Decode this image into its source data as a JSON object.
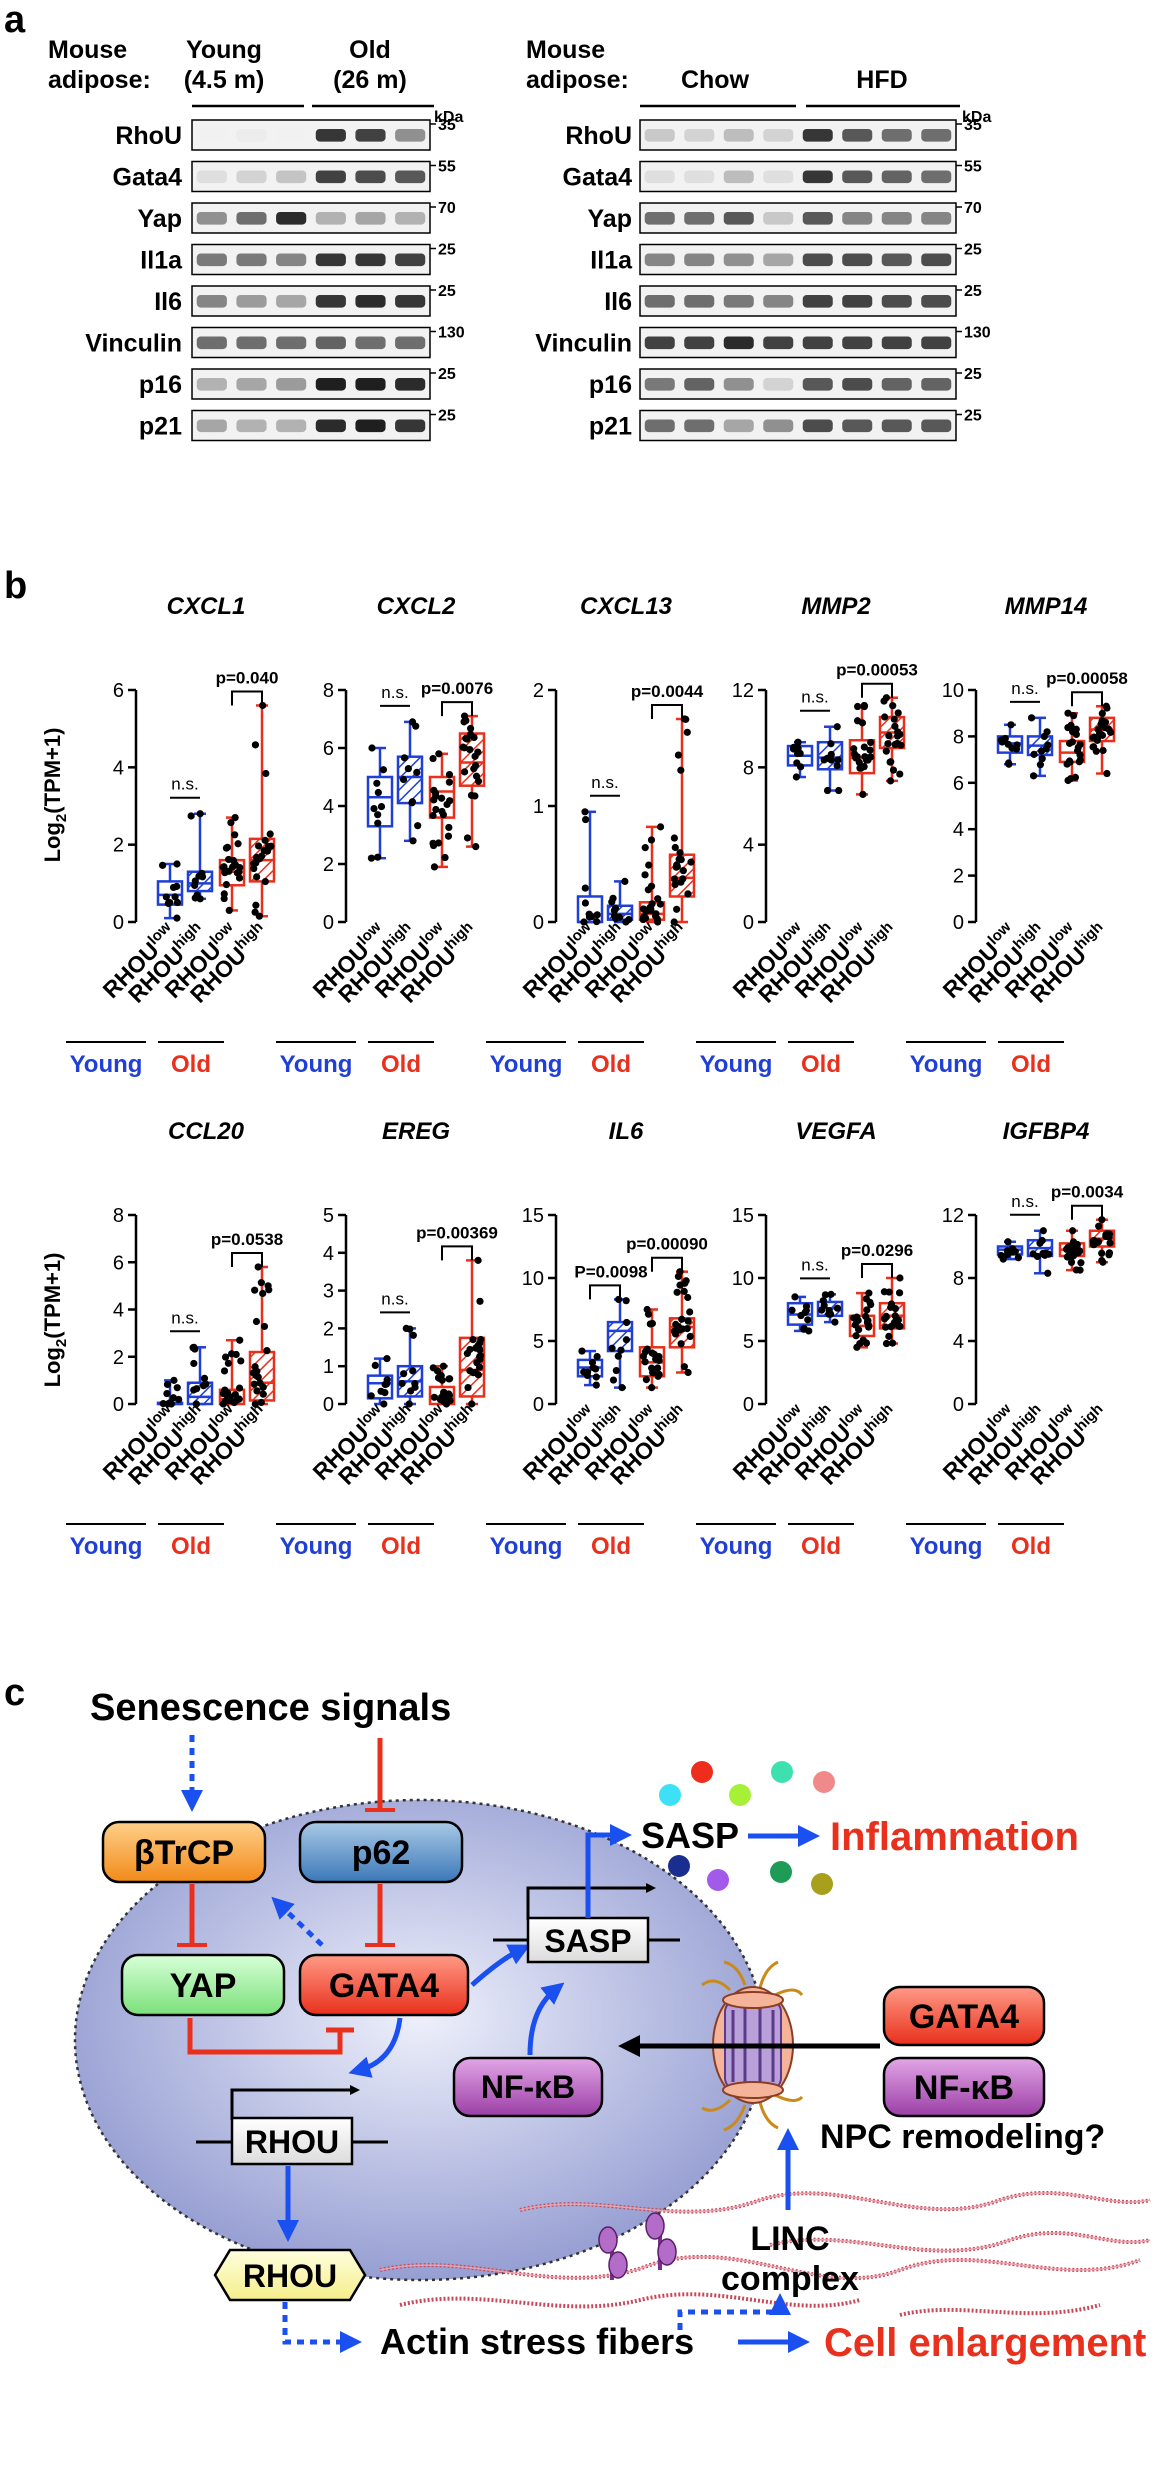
{
  "panel_a": {
    "letter": "a",
    "left": {
      "title1": "Mouse",
      "title2": "adipose:",
      "groups": [
        {
          "name": "Young",
          "sub": "(4.5 m)"
        },
        {
          "name": "Old",
          "sub": "(26 m)"
        }
      ],
      "kda": "kDa",
      "lanes_per_group": 3,
      "rows": [
        {
          "protein": "RhoU",
          "kda": "35",
          "intensity": [
            0.02,
            0.04,
            0.02,
            0.85,
            0.8,
            0.45
          ]
        },
        {
          "protein": "Gata4",
          "kda": "55",
          "intensity": [
            0.1,
            0.15,
            0.22,
            0.8,
            0.75,
            0.7
          ]
        },
        {
          "protein": "Yap",
          "kda": "70",
          "intensity": [
            0.45,
            0.6,
            0.9,
            0.3,
            0.35,
            0.3
          ]
        },
        {
          "protein": "Il1a",
          "kda": "25",
          "intensity": [
            0.55,
            0.55,
            0.5,
            0.85,
            0.85,
            0.8
          ]
        },
        {
          "protein": "Il6",
          "kda": "25",
          "intensity": [
            0.5,
            0.4,
            0.35,
            0.85,
            0.9,
            0.85
          ]
        },
        {
          "protein": "Vinculin",
          "kda": "130",
          "intensity": [
            0.6,
            0.6,
            0.6,
            0.65,
            0.6,
            0.6
          ]
        },
        {
          "protein": "p16",
          "kda": "25",
          "intensity": [
            0.3,
            0.35,
            0.4,
            0.95,
            0.95,
            0.9
          ]
        },
        {
          "protein": "p21",
          "kda": "25",
          "intensity": [
            0.35,
            0.3,
            0.3,
            0.9,
            0.95,
            0.85
          ]
        }
      ]
    },
    "right": {
      "title1": "Mouse",
      "title2": "adipose:",
      "groups": [
        {
          "name": "Chow",
          "sub": ""
        },
        {
          "name": "HFD",
          "sub": ""
        }
      ],
      "kda": "kDa",
      "lanes_per_group": 4,
      "rows": [
        {
          "protein": "RhoU",
          "kda": "35",
          "intensity": [
            0.2,
            0.15,
            0.25,
            0.15,
            0.85,
            0.7,
            0.6,
            0.6
          ]
        },
        {
          "protein": "Gata4",
          "kda": "55",
          "intensity": [
            0.1,
            0.1,
            0.25,
            0.1,
            0.85,
            0.7,
            0.65,
            0.6
          ]
        },
        {
          "protein": "Yap",
          "kda": "70",
          "intensity": [
            0.6,
            0.6,
            0.7,
            0.2,
            0.7,
            0.5,
            0.5,
            0.5
          ]
        },
        {
          "protein": "Il1a",
          "kda": "25",
          "intensity": [
            0.5,
            0.5,
            0.45,
            0.35,
            0.75,
            0.75,
            0.7,
            0.75
          ]
        },
        {
          "protein": "Il6",
          "kda": "25",
          "intensity": [
            0.6,
            0.6,
            0.55,
            0.5,
            0.8,
            0.8,
            0.75,
            0.75
          ]
        },
        {
          "protein": "Vinculin",
          "kda": "130",
          "intensity": [
            0.8,
            0.8,
            0.9,
            0.8,
            0.8,
            0.8,
            0.8,
            0.8
          ]
        },
        {
          "protein": "p16",
          "kda": "25",
          "intensity": [
            0.55,
            0.65,
            0.45,
            0.15,
            0.7,
            0.75,
            0.65,
            0.65
          ]
        },
        {
          "protein": "p21",
          "kda": "25",
          "intensity": [
            0.6,
            0.6,
            0.35,
            0.45,
            0.75,
            0.7,
            0.7,
            0.7
          ]
        }
      ]
    }
  },
  "panel_b": {
    "letter": "b",
    "ylabel_pre": "Log",
    "ylabel_sub": "2",
    "ylabel_post": "(TPM+1)",
    "xlabel_base": "RHOU",
    "xlabel_sups": [
      "low",
      "high",
      "low",
      "high"
    ],
    "group_young": "Young",
    "group_old": "Old",
    "colors": {
      "young": "#1f3fd6",
      "old": "#e8301c"
    }
  },
  "chart_data": [
    {
      "type": "box",
      "title": "CXCL1",
      "ylim": [
        0,
        6
      ],
      "yticks": [
        "0",
        "2",
        "4",
        "6"
      ],
      "ns_label": "n.s.",
      "p_label": "p=0.040",
      "boxes": [
        {
          "min": 0.1,
          "q1": 0.45,
          "med": 0.7,
          "q3": 1.05,
          "max": 1.5
        },
        {
          "min": 0.6,
          "q1": 0.8,
          "med": 1.0,
          "q3": 1.3,
          "max": 2.8
        },
        {
          "min": 0.3,
          "q1": 0.95,
          "med": 1.3,
          "q3": 1.6,
          "max": 2.7
        },
        {
          "min": 0.15,
          "q1": 1.05,
          "med": 1.6,
          "q3": 2.15,
          "max": 5.6
        }
      ]
    },
    {
      "type": "box",
      "title": "CXCL2",
      "ylim": [
        0,
        8
      ],
      "yticks": [
        "0",
        "2",
        "4",
        "6",
        "8"
      ],
      "ns_label": "n.s.",
      "p_label": "p=0.0076",
      "boxes": [
        {
          "min": 2.2,
          "q1": 3.3,
          "med": 4.3,
          "q3": 5.0,
          "max": 6.0
        },
        {
          "min": 2.8,
          "q1": 4.1,
          "med": 5.0,
          "q3": 5.7,
          "max": 6.9
        },
        {
          "min": 1.9,
          "q1": 3.6,
          "med": 4.5,
          "q3": 5.0,
          "max": 5.8
        },
        {
          "min": 2.6,
          "q1": 4.7,
          "med": 5.5,
          "q3": 6.5,
          "max": 7.1
        }
      ]
    },
    {
      "type": "box",
      "title": "CXCL13",
      "ylim": [
        0,
        2
      ],
      "yticks": [
        "0",
        "1",
        "2"
      ],
      "ns_label": "n.s.",
      "p_label": "p=0.0044",
      "boxes": [
        {
          "min": 0.0,
          "q1": 0.0,
          "med": 0.0,
          "q3": 0.22,
          "max": 0.95
        },
        {
          "min": 0.0,
          "q1": 0.02,
          "med": 0.07,
          "q3": 0.14,
          "max": 0.35
        },
        {
          "min": 0.0,
          "q1": 0.02,
          "med": 0.07,
          "q3": 0.17,
          "max": 0.82
        },
        {
          "min": 0.0,
          "q1": 0.22,
          "med": 0.38,
          "q3": 0.58,
          "max": 1.75
        }
      ]
    },
    {
      "type": "box",
      "title": "MMP2",
      "ylim": [
        0,
        12
      ],
      "yticks": [
        "0",
        "4",
        "8",
        "12"
      ],
      "ns_label": "n.s.",
      "p_label": "p=0.00053",
      "boxes": [
        {
          "min": 7.5,
          "q1": 8.1,
          "med": 8.6,
          "q3": 9.1,
          "max": 9.3
        },
        {
          "min": 6.8,
          "q1": 7.9,
          "med": 8.5,
          "q3": 9.3,
          "max": 10.1
        },
        {
          "min": 6.6,
          "q1": 7.7,
          "med": 8.5,
          "q3": 9.4,
          "max": 11.2
        },
        {
          "min": 7.3,
          "q1": 9.0,
          "med": 9.8,
          "q3": 10.6,
          "max": 11.6
        }
      ]
    },
    {
      "type": "box",
      "title": "MMP14",
      "ylim": [
        0,
        10
      ],
      "yticks": [
        "0",
        "2",
        "4",
        "6",
        "8",
        "10"
      ],
      "ns_label": "n.s.",
      "p_label": "p=0.00058",
      "boxes": [
        {
          "min": 6.8,
          "q1": 7.3,
          "med": 7.7,
          "q3": 8.0,
          "max": 8.5
        },
        {
          "min": 6.3,
          "q1": 7.2,
          "med": 7.6,
          "q3": 8.0,
          "max": 8.8
        },
        {
          "min": 6.1,
          "q1": 6.9,
          "med": 7.3,
          "q3": 7.8,
          "max": 9.0
        },
        {
          "min": 6.4,
          "q1": 7.8,
          "med": 8.3,
          "q3": 8.8,
          "max": 9.3
        }
      ]
    },
    {
      "type": "box",
      "title": "CCL20",
      "ylim": [
        0,
        8
      ],
      "yticks": [
        "0",
        "2",
        "4",
        "6",
        "8"
      ],
      "ns_label": "n.s.",
      "p_label": "p=0.0538",
      "boxes": [
        {
          "min": 0.0,
          "q1": 0.0,
          "med": 0.0,
          "q3": 0.05,
          "max": 1.0
        },
        {
          "min": 0.0,
          "q1": 0.0,
          "med": 0.3,
          "q3": 0.9,
          "max": 2.4
        },
        {
          "min": 0.0,
          "q1": 0.0,
          "med": 0.2,
          "q3": 0.6,
          "max": 2.7
        },
        {
          "min": 0.0,
          "q1": 0.15,
          "med": 0.9,
          "q3": 2.2,
          "max": 5.8
        }
      ]
    },
    {
      "type": "box",
      "title": "EREG",
      "ylim": [
        0,
        5
      ],
      "yticks": [
        "0",
        "1",
        "2",
        "3",
        "4",
        "5"
      ],
      "ns_label": "n.s.",
      "p_label": "p=0.00369",
      "boxes": [
        {
          "min": 0.0,
          "q1": 0.15,
          "med": 0.55,
          "q3": 0.75,
          "max": 1.2
        },
        {
          "min": 0.0,
          "q1": 0.2,
          "med": 0.6,
          "q3": 1.0,
          "max": 2.0
        },
        {
          "min": 0.0,
          "q1": 0.0,
          "med": 0.2,
          "q3": 0.45,
          "max": 1.0
        },
        {
          "min": 0.0,
          "q1": 0.2,
          "med": 0.9,
          "q3": 1.75,
          "max": 3.8
        }
      ]
    },
    {
      "type": "box",
      "title": "IL6",
      "ylim": [
        0,
        15
      ],
      "yticks": [
        "0",
        "5",
        "10",
        "15"
      ],
      "ns_label": "",
      "p_label": "p=0.00090",
      "p_label_left": "P=0.0098",
      "boxes": [
        {
          "min": 1.5,
          "q1": 2.2,
          "med": 2.9,
          "q3": 3.5,
          "max": 4.2
        },
        {
          "min": 1.3,
          "q1": 4.2,
          "med": 5.8,
          "q3": 6.5,
          "max": 8.3
        },
        {
          "min": 1.3,
          "q1": 2.2,
          "med": 3.3,
          "q3": 4.5,
          "max": 7.5
        },
        {
          "min": 2.5,
          "q1": 4.5,
          "med": 6.1,
          "q3": 6.8,
          "max": 10.5
        }
      ]
    },
    {
      "type": "box",
      "title": "VEGFA",
      "ylim": [
        0,
        15
      ],
      "yticks": [
        "0",
        "5",
        "10",
        "15"
      ],
      "ns_label": "n.s.",
      "p_label": "p=0.0296",
      "boxes": [
        {
          "min": 5.8,
          "q1": 6.3,
          "med": 7.1,
          "q3": 8.0,
          "max": 8.5
        },
        {
          "min": 6.5,
          "q1": 7.0,
          "med": 7.6,
          "q3": 8.1,
          "max": 8.7
        },
        {
          "min": 4.5,
          "q1": 5.4,
          "med": 6.2,
          "q3": 7.0,
          "max": 8.8
        },
        {
          "min": 4.8,
          "q1": 6.0,
          "med": 7.0,
          "q3": 8.0,
          "max": 10.0
        }
      ]
    },
    {
      "type": "box",
      "title": "IGFBP4",
      "ylim": [
        0,
        12
      ],
      "yticks": [
        "0",
        "4",
        "8",
        "12"
      ],
      "ns_label": "n.s.",
      "p_label": "p=0.0034",
      "boxes": [
        {
          "min": 9.2,
          "q1": 9.5,
          "med": 9.8,
          "q3": 10.0,
          "max": 10.3
        },
        {
          "min": 8.3,
          "q1": 9.4,
          "med": 9.9,
          "q3": 10.4,
          "max": 11.0
        },
        {
          "min": 8.5,
          "q1": 9.4,
          "med": 9.8,
          "q3": 10.2,
          "max": 11.0
        },
        {
          "min": 9.0,
          "q1": 10.0,
          "med": 10.5,
          "q3": 11.0,
          "max": 11.7
        }
      ]
    }
  ],
  "panel_c": {
    "letter": "c",
    "senescence": "Senescence signals",
    "btrcp": "βTrCP",
    "p62": "p62",
    "yap": "YAP",
    "gata4": "GATA4",
    "sasp_gene": "SASP",
    "sasp_out": "SASP",
    "inflammation": "Inflammation",
    "nfkb": "NF-κB",
    "rhou_gene": "RHOU",
    "rhou_protein": "RHOU",
    "gata4_out": "GATA4",
    "nfkb_out": "NF-κB",
    "npc": "NPC remodeling?",
    "linc1": "LINC",
    "linc2": "complex",
    "actin": "Actin stress fibers",
    "cell": "Cell enlargement",
    "colors": {
      "red": "#e8301c",
      "blue": "#1a4ff0"
    }
  }
}
